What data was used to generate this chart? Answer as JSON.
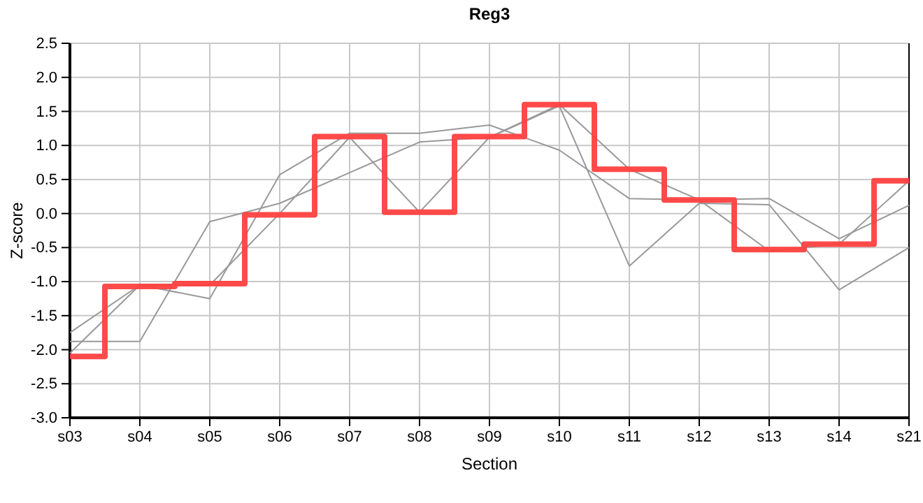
{
  "chart_data": {
    "type": "line",
    "title": "Reg3",
    "xlabel": "Section",
    "ylabel": "Z-score",
    "categories": [
      "s03",
      "s04",
      "s05",
      "s06",
      "s07",
      "s08",
      "s09",
      "s10",
      "s11",
      "s12",
      "s13",
      "s14",
      "s21"
    ],
    "ylim": [
      -3.0,
      2.5
    ],
    "yticks": [
      {
        "value": -3,
        "label": "-3.0"
      },
      {
        "value": -2.5,
        "label": "-2.5"
      },
      {
        "value": -2,
        "label": "-2.0"
      },
      {
        "value": -1.5,
        "label": "-1.5"
      },
      {
        "value": -1,
        "label": "-1.0"
      },
      {
        "value": -0.5,
        "label": "-0.5"
      },
      {
        "value": 0,
        "label": "0.0"
      },
      {
        "value": 0.5,
        "label": "0.5"
      },
      {
        "value": 1,
        "label": "1.0"
      },
      {
        "value": 1.5,
        "label": "1.5"
      },
      {
        "value": 2,
        "label": "2.0"
      },
      {
        "value": 2.5,
        "label": "2.5"
      }
    ],
    "grid": true,
    "marker": "none",
    "line_style": "solid",
    "series": [
      {
        "color": "#999999",
        "values": [
          -1.88,
          -1.88,
          -0.12,
          0.15,
          0.6,
          1.05,
          1.12,
          1.58,
          -0.77,
          0.15,
          0.13,
          -1.12,
          -0.5
        ]
      },
      {
        "color": "#999999",
        "values": [
          -1.75,
          -1.05,
          -1.25,
          0.57,
          1.18,
          1.18,
          1.3,
          0.93,
          0.22,
          0.2,
          0.22,
          -0.37,
          0.12
        ]
      },
      {
        "color": "#999999",
        "values": [
          -2.05,
          -1.05,
          -1.05,
          0.0,
          1.12,
          0.02,
          1.12,
          1.6,
          0.65,
          0.2,
          -0.55,
          -0.45,
          0.48
        ]
      },
      {
        "type": "step",
        "color": "#ff4040",
        "values": [
          -2.1,
          -1.07,
          -1.03,
          -0.02,
          1.13,
          0.02,
          1.13,
          1.6,
          0.65,
          0.2,
          -0.53,
          -0.45,
          0.48
        ]
      }
    ]
  }
}
